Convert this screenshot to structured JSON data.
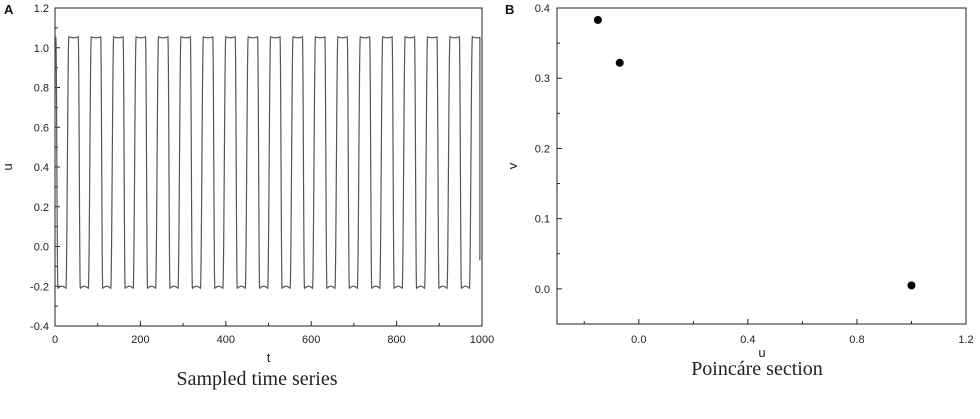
{
  "chart_data": [
    {
      "panel_label": "A",
      "type": "line",
      "caption": "Sampled time series",
      "xlabel": "t",
      "ylabel": "u",
      "xlim": [
        0,
        1000
      ],
      "ylim": [
        -0.4,
        1.2
      ],
      "xticks": [
        "0",
        "200",
        "400",
        "600",
        "800",
        "1000"
      ],
      "yticks": [
        "-0.4",
        "-0.2",
        "0.0",
        "0.2",
        "0.4",
        "0.6",
        "0.8",
        "1.0",
        "1.2"
      ],
      "grid": false,
      "series": [
        {
          "color": "#555555",
          "period": 52.5,
          "min": -0.21,
          "max": 1.055,
          "start_value": 1.0,
          "end_value": -0.07,
          "x_range": [
            0,
            995
          ]
        }
      ]
    },
    {
      "panel_label": "B",
      "type": "scatter",
      "caption": "Poincáre section",
      "xlabel": "u",
      "ylabel": "v",
      "xlim": [
        -0.3,
        1.2
      ],
      "ylim": [
        -0.05,
        0.4
      ],
      "xticks": [
        "0.0",
        "0.4",
        "0.8",
        "1.2"
      ],
      "yticks": [
        "0.0",
        "0.1",
        "0.2",
        "0.3",
        "0.4"
      ],
      "grid": false,
      "series": [
        {
          "color": "#000000",
          "points": [
            {
              "x": -0.15,
              "y": 0.383
            },
            {
              "x": -0.07,
              "y": 0.322
            },
            {
              "x": 1.0,
              "y": 0.005
            }
          ]
        }
      ]
    }
  ]
}
